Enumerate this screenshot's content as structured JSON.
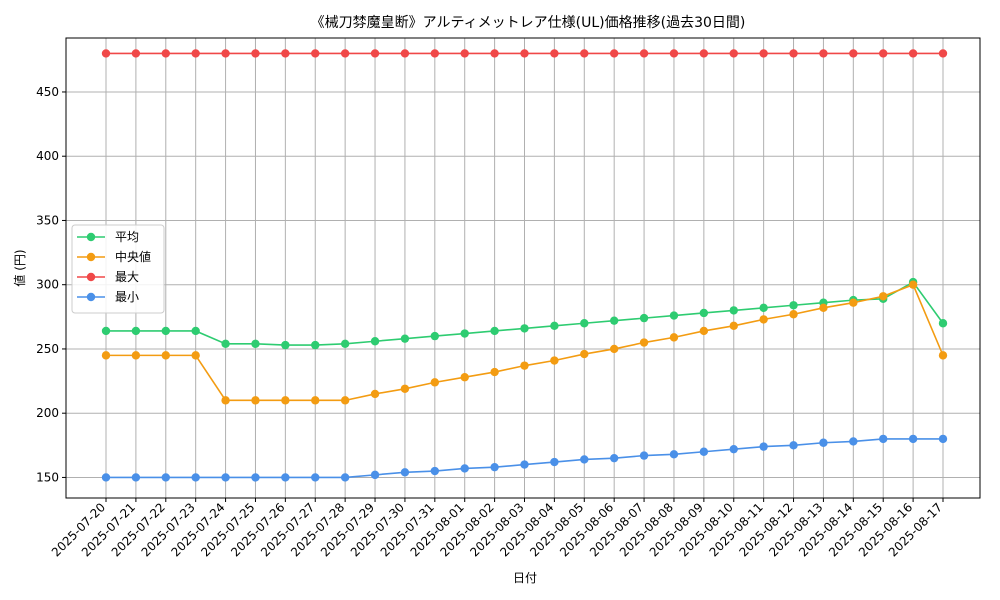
{
  "chart_data": {
    "type": "line",
    "title": "《械刀棼魔皇断》アルティメットレア仕様(UL)価格推移(過去30日間)",
    "xlabel": "日付",
    "ylabel": "値 (円)",
    "ylim": [
      134,
      492
    ],
    "yticks": [
      150,
      200,
      250,
      300,
      350,
      400,
      450
    ],
    "grid": true,
    "legend_position": "center-left",
    "categories": [
      "2025-07-20",
      "2025-07-21",
      "2025-07-22",
      "2025-07-23",
      "2025-07-24",
      "2025-07-25",
      "2025-07-26",
      "2025-07-27",
      "2025-07-28",
      "2025-07-29",
      "2025-07-30",
      "2025-07-31",
      "2025-08-01",
      "2025-08-02",
      "2025-08-03",
      "2025-08-04",
      "2025-08-05",
      "2025-08-06",
      "2025-08-07",
      "2025-08-08",
      "2025-08-09",
      "2025-08-10",
      "2025-08-11",
      "2025-08-12",
      "2025-08-13",
      "2025-08-14",
      "2025-08-15",
      "2025-08-16",
      "2025-08-17"
    ],
    "series": [
      {
        "name": "平均",
        "color": "#2ecc71",
        "values": [
          264,
          264,
          264,
          264,
          254,
          254,
          253,
          253,
          254,
          256,
          258,
          260,
          262,
          264,
          266,
          268,
          270,
          272,
          274,
          276,
          278,
          280,
          282,
          284,
          286,
          288,
          289,
          302,
          270
        ]
      },
      {
        "name": "中央値",
        "color": "#f39c12",
        "values": [
          245,
          245,
          245,
          245,
          210,
          210,
          210,
          210,
          210,
          215,
          219,
          224,
          228,
          232,
          237,
          241,
          246,
          250,
          255,
          259,
          264,
          268,
          273,
          277,
          282,
          286,
          291,
          300,
          245
        ]
      },
      {
        "name": "最大",
        "color": "#f04848",
        "values": [
          480,
          480,
          480,
          480,
          480,
          480,
          480,
          480,
          480,
          480,
          480,
          480,
          480,
          480,
          480,
          480,
          480,
          480,
          480,
          480,
          480,
          480,
          480,
          480,
          480,
          480,
          480,
          480,
          480
        ]
      },
      {
        "name": "最小",
        "color": "#4a90e8",
        "values": [
          150,
          150,
          150,
          150,
          150,
          150,
          150,
          150,
          150,
          152,
          154,
          155,
          157,
          158,
          160,
          162,
          164,
          165,
          167,
          168,
          170,
          172,
          174,
          175,
          177,
          178,
          180,
          180,
          180
        ]
      }
    ]
  }
}
